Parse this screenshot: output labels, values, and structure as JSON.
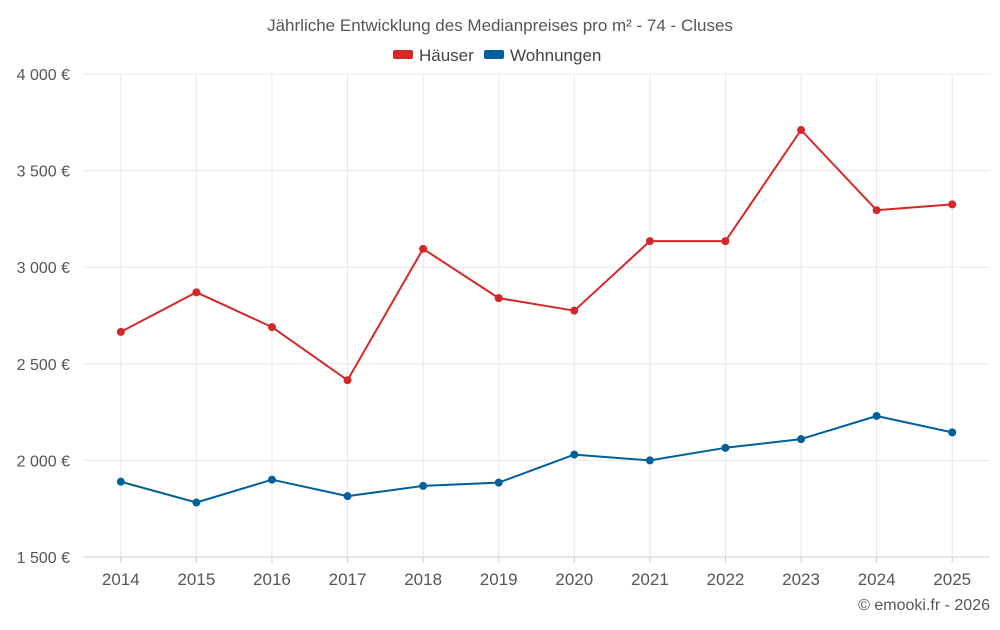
{
  "chart_data": {
    "type": "line",
    "title": "Jährliche Entwicklung des Medianpreises pro m² - 74 - Cluses",
    "xlabel": "",
    "ylabel": "",
    "categories": [
      "2014",
      "2015",
      "2016",
      "2017",
      "2018",
      "2019",
      "2020",
      "2021",
      "2022",
      "2023",
      "2024",
      "2025"
    ],
    "ylim": [
      1500,
      4000
    ],
    "yticks": [
      1500,
      2000,
      2500,
      3000,
      3500,
      4000
    ],
    "ytick_labels": [
      "1 500 €",
      "2 000 €",
      "2 500 €",
      "3 000 €",
      "3 500 €",
      "4 000 €"
    ],
    "grid": true,
    "legend_position": "top-center",
    "series": [
      {
        "name": "Häuser",
        "color": "#d62728",
        "values": [
          2665,
          2870,
          2690,
          2415,
          3095,
          2840,
          2775,
          3135,
          3135,
          3710,
          3295,
          3325
        ]
      },
      {
        "name": "Wohnungen",
        "color": "#00609c",
        "values": [
          1890,
          1782,
          1900,
          1815,
          1868,
          1885,
          2030,
          2000,
          2065,
          2110,
          2230,
          2145
        ]
      }
    ],
    "credit": "© emooki.fr - 2026"
  }
}
